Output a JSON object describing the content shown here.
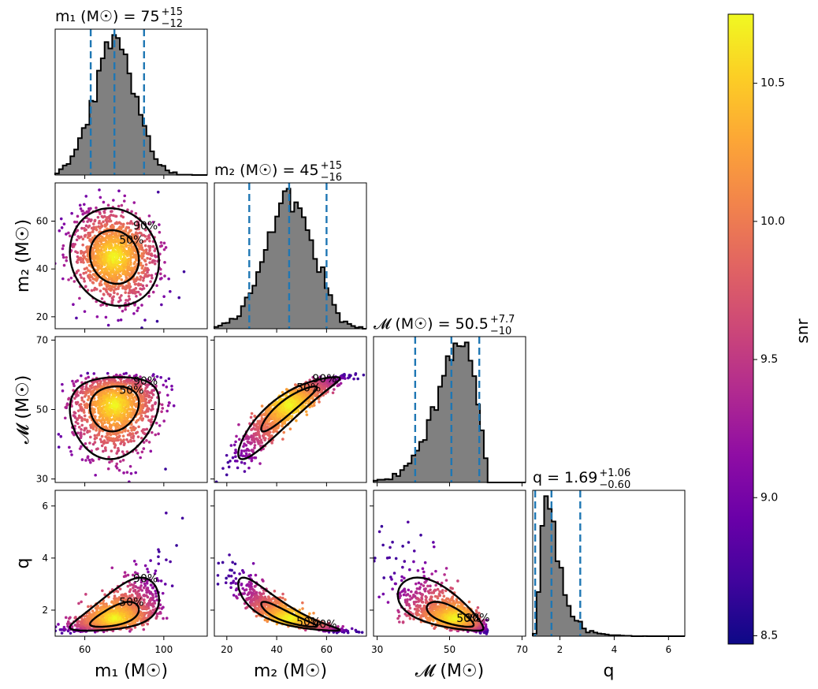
{
  "chart_data": {
    "type": "scatter",
    "subtype": "corner-plot",
    "colorbar": {
      "label": "snr",
      "cmap": "plasma",
      "range": [
        8.47,
        10.75
      ],
      "ticks": [
        8.5,
        9.0,
        9.5,
        10.0,
        10.5
      ],
      "tick_labels": [
        "8.5",
        "9.0",
        "9.5",
        "10.0",
        "10.5"
      ]
    },
    "colors": {
      "histogram_fill": "#808080",
      "quantile_line": "#1f77b4",
      "contour": "#000000"
    },
    "contour_levels": [
      "50%",
      "90%"
    ],
    "parameters": [
      {
        "key": "m1",
        "label": "m₁ (M☉)",
        "range": [
          45,
          122
        ],
        "ticks": [
          60,
          100
        ],
        "median": 75,
        "plus": 15,
        "minus": 12,
        "title_value": "75",
        "title_plus": "+15",
        "title_minus": "−12",
        "distribution": "normal",
        "mean": 75,
        "sd": 10.5
      },
      {
        "key": "m2",
        "label": "m₂ (M☉)",
        "range": [
          15,
          76
        ],
        "ticks": [
          20,
          40,
          60
        ],
        "median": 45,
        "plus": 15,
        "minus": 16,
        "title_value": "45",
        "title_plus": "+15",
        "title_minus": "−16",
        "distribution": "normal",
        "mean": 45,
        "sd": 9.5
      },
      {
        "key": "mc",
        "label": "𝓜 (M☉)",
        "range": [
          29,
          71
        ],
        "ticks": [
          30,
          50,
          70
        ],
        "median": 50.5,
        "plus": 7.7,
        "minus": 10,
        "title_value": "50.5",
        "title_plus": "+7.7",
        "title_minus": "−10",
        "distribution": "skewed",
        "mean": 50.5,
        "sd": 5.5
      },
      {
        "key": "q",
        "label": "q",
        "range": [
          1.0,
          6.6
        ],
        "ticks": [
          2,
          4,
          6
        ],
        "median": 1.69,
        "plus": 1.06,
        "minus": 0.6,
        "title_value": "1.69",
        "title_plus": "+1.06",
        "title_minus": "−0.60",
        "distribution": "lognormal",
        "mean": 1.69,
        "sd": 0.55
      }
    ],
    "histograms": [
      {
        "param": "m1",
        "quantiles": [
          63,
          75,
          90
        ]
      },
      {
        "param": "m2",
        "quantiles": [
          29,
          45,
          60
        ]
      },
      {
        "param": "mc",
        "quantiles": [
          40.5,
          50.5,
          58.2
        ]
      },
      {
        "param": "q",
        "quantiles": [
          1.09,
          1.69,
          2.75
        ]
      }
    ],
    "scatter_panels": [
      {
        "x": "m1",
        "y": "m2",
        "correlation": -0.1
      },
      {
        "x": "m1",
        "y": "mc",
        "correlation": 0.1
      },
      {
        "x": "m2",
        "y": "mc",
        "correlation": 0.92
      },
      {
        "x": "m1",
        "y": "q",
        "correlation": 0.6
      },
      {
        "x": "m2",
        "y": "q",
        "correlation": -0.9
      },
      {
        "x": "mc",
        "y": "q",
        "correlation": -0.7
      }
    ]
  }
}
